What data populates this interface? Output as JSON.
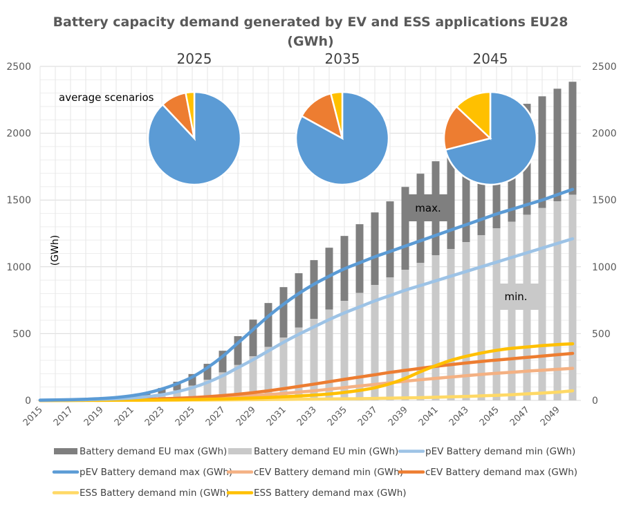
{
  "chart_data": {
    "type": "bar",
    "title": "Battery capacity demand generated by EV and ESS applications EU28",
    "title_line2": "(GWh)",
    "ylabel": "(GWh)",
    "xlabel": "",
    "ylim": [
      0,
      2500
    ],
    "y_ticks": [
      "0",
      "500",
      "1000",
      "1500",
      "2000",
      "2500"
    ],
    "y_tick_values": [
      0,
      500,
      1000,
      1500,
      2000,
      2500
    ],
    "secondary_y_ticks": [
      "0",
      "500",
      "1000",
      "1500",
      "2000",
      "2500"
    ],
    "grid": true,
    "x_tick_labels": [
      "2015",
      "2017",
      "2019",
      "2021",
      "2023",
      "2025",
      "2027",
      "2029",
      "2031",
      "2033",
      "2035",
      "2037",
      "2039",
      "2041",
      "2043",
      "2045",
      "2047",
      "2049"
    ],
    "x": [
      2015,
      2016,
      2017,
      2018,
      2019,
      2020,
      2021,
      2022,
      2023,
      2024,
      2025,
      2026,
      2027,
      2028,
      2029,
      2030,
      2031,
      2032,
      2033,
      2034,
      2035,
      2036,
      2037,
      2038,
      2039,
      2040,
      2041,
      2042,
      2043,
      2044,
      2045,
      2046,
      2047,
      2048,
      2049,
      2050
    ],
    "series": [
      {
        "name": "Battery demand EU max (GWh)",
        "kind": "bar-stack-top",
        "color": "#7f7f7f",
        "values": [
          2,
          3,
          5,
          8,
          12,
          18,
          28,
          50,
          93,
          140,
          197,
          274,
          372,
          481,
          605,
          729,
          848,
          952,
          1050,
          1143,
          1231,
          1319,
          1407,
          1490,
          1598,
          1697,
          1790,
          1880,
          1960,
          2040,
          2100,
          2160,
          2220,
          2276,
          2333,
          2385
        ]
      },
      {
        "name": "Battery demand EU min (GWh)",
        "kind": "bar",
        "color": "#c9c9c9",
        "values": [
          1,
          2,
          3,
          5,
          8,
          12,
          18,
          30,
          50,
          75,
          110,
          155,
          210,
          265,
          330,
          400,
          470,
          545,
          610,
          680,
          745,
          805,
          864,
          921,
          978,
          1029,
          1086,
          1133,
          1185,
          1236,
          1288,
          1338,
          1390,
          1440,
          1490,
          1540
        ]
      },
      {
        "name": "pEV Battery demand min (GWh)",
        "kind": "line",
        "color": "#9dc3e6",
        "values": [
          2,
          3,
          4,
          6,
          9,
          12,
          18,
          28,
          42,
          65,
          95,
          135,
          185,
          245,
          305,
          370,
          435,
          495,
          550,
          605,
          655,
          700,
          745,
          785,
          825,
          860,
          895,
          930,
          965,
          1000,
          1035,
          1070,
          1105,
          1140,
          1175,
          1210
        ]
      },
      {
        "name": "pEV Battery demand max (GWh)",
        "kind": "line",
        "color": "#5b9bd5",
        "values": [
          2,
          4,
          6,
          9,
          14,
          22,
          35,
          55,
          85,
          125,
          175,
          245,
          330,
          430,
          530,
          630,
          720,
          800,
          870,
          930,
          985,
          1030,
          1075,
          1115,
          1155,
          1195,
          1235,
          1275,
          1315,
          1355,
          1395,
          1430,
          1465,
          1500,
          1540,
          1580
        ]
      },
      {
        "name": "cEV Battery demand min (GWh)",
        "kind": "line",
        "color": "#f4b183",
        "values": [
          0,
          0,
          1,
          1,
          2,
          3,
          4,
          6,
          8,
          11,
          14,
          18,
          23,
          29,
          36,
          44,
          52,
          62,
          72,
          84,
          96,
          108,
          120,
          132,
          144,
          155,
          165,
          175,
          185,
          195,
          203,
          211,
          219,
          226,
          233,
          240
        ]
      },
      {
        "name": "cEV Battery demand max (GWh)",
        "kind": "line",
        "color": "#ed7d31",
        "values": [
          0,
          1,
          1,
          2,
          3,
          4,
          6,
          9,
          12,
          16,
          21,
          28,
          36,
          46,
          58,
          72,
          88,
          105,
          122,
          140,
          158,
          175,
          192,
          210,
          225,
          240,
          255,
          268,
          280,
          292,
          302,
          312,
          322,
          332,
          342,
          352
        ]
      },
      {
        "name": "ESS Battery demand min (GWh)",
        "kind": "line",
        "color": "#ffd966",
        "values": [
          0,
          0,
          0,
          0,
          0,
          1,
          1,
          1,
          2,
          2,
          3,
          3,
          4,
          5,
          6,
          7,
          8,
          9,
          10,
          11,
          12,
          13,
          15,
          17,
          19,
          21,
          24,
          27,
          30,
          34,
          38,
          43,
          49,
          55,
          62,
          72
        ]
      },
      {
        "name": "ESS Battery demand max (GWh)",
        "kind": "line",
        "color": "#ffc000",
        "values": [
          0,
          0,
          0,
          1,
          1,
          2,
          2,
          3,
          4,
          5,
          7,
          9,
          11,
          14,
          18,
          22,
          27,
          33,
          40,
          48,
          60,
          75,
          95,
          125,
          165,
          215,
          260,
          300,
          330,
          355,
          375,
          390,
          400,
          410,
          418,
          424
        ]
      }
    ],
    "pies": [
      {
        "label": "2025",
        "slices": [
          {
            "name": "pEV",
            "value": 88,
            "color": "#5b9bd5"
          },
          {
            "name": "cEV",
            "value": 9,
            "color": "#ed7d31"
          },
          {
            "name": "ESS",
            "value": 3,
            "color": "#ffc000"
          }
        ]
      },
      {
        "label": "2035",
        "slices": [
          {
            "name": "pEV",
            "value": 83,
            "color": "#5b9bd5"
          },
          {
            "name": "cEV",
            "value": 13,
            "color": "#ed7d31"
          },
          {
            "name": "ESS",
            "value": 4,
            "color": "#ffc000"
          }
        ]
      },
      {
        "label": "2045",
        "slices": [
          {
            "name": "pEV",
            "value": 71,
            "color": "#5b9bd5"
          },
          {
            "name": "cEV",
            "value": 16,
            "color": "#ed7d31"
          },
          {
            "name": "ESS",
            "value": 13,
            "color": "#ffc000"
          }
        ]
      }
    ],
    "annotations": {
      "pies_label": "average scenarios",
      "max_label": "max.",
      "min_label": "min."
    },
    "legend": {
      "placement": "bottom",
      "items": [
        {
          "label": "Battery demand EU max (GWh)",
          "kind": "bar",
          "color": "#7f7f7f"
        },
        {
          "label": "Battery demand EU min (GWh)",
          "kind": "bar",
          "color": "#c9c9c9"
        },
        {
          "label": "pEV Battery demand min (GWh)",
          "kind": "line",
          "color": "#9dc3e6"
        },
        {
          "label": "pEV Battery demand max (GWh)",
          "kind": "line",
          "color": "#5b9bd5"
        },
        {
          "label": "cEV Battery demand min (GWh)",
          "kind": "line",
          "color": "#f4b183"
        },
        {
          "label": "cEV Battery demand max (GWh)",
          "kind": "line",
          "color": "#ed7d31"
        },
        {
          "label": "ESS Battery demand min (GWh)",
          "kind": "line",
          "color": "#ffd966"
        },
        {
          "label": "ESS Battery demand max (GWh)",
          "kind": "line",
          "color": "#ffc000"
        }
      ]
    }
  }
}
